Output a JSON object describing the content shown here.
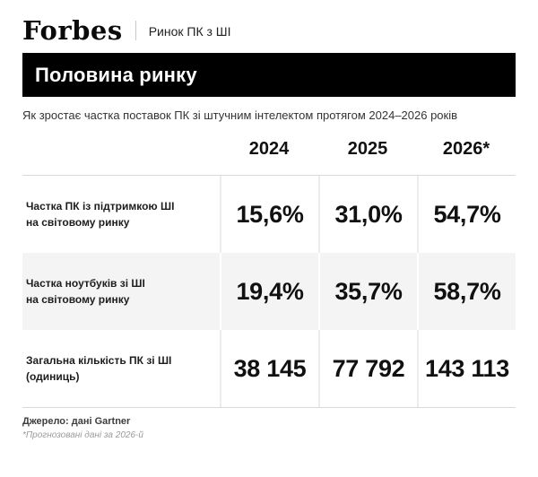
{
  "header": {
    "brand": "Forbes",
    "tagline": "Ринок ПК з ШІ"
  },
  "title_bar": {
    "title": "Половина ринку"
  },
  "subtitle": "Як зростає частка поставок ПК зі штучним інтелектом протягом 2024–2026 років",
  "chart_data": {
    "type": "table",
    "columns": [
      "2024",
      "2025",
      "2026*"
    ],
    "rows": [
      {
        "label_line1": "Частка ПК із підтримкою ШІ",
        "label_line2": "на світовому ринку",
        "values": [
          "15,6%",
          "31,0%",
          "54,7%"
        ]
      },
      {
        "label_line1": "Частка ноутбуків зі ШІ",
        "label_line2": "на світовому ринку",
        "values": [
          "19,4%",
          "35,7%",
          "58,7%"
        ]
      },
      {
        "label_line1": "Загальна кількість ПК зі ШІ",
        "label_line2": "(одиниць)",
        "values": [
          "38 145",
          "77 792",
          "143 113"
        ]
      }
    ]
  },
  "footer": {
    "source": "Джерело: дані Gartner",
    "footnote": "*Прогнозовані дані за 2026-й"
  },
  "colors": {
    "title_bar_bg": "#000000",
    "title_bar_text": "#ffffff",
    "row_alt_bg": "#f4f4f4",
    "divider": "#ececec",
    "rule": "#d9d9d9",
    "footnote_text": "#9b9b9b"
  }
}
